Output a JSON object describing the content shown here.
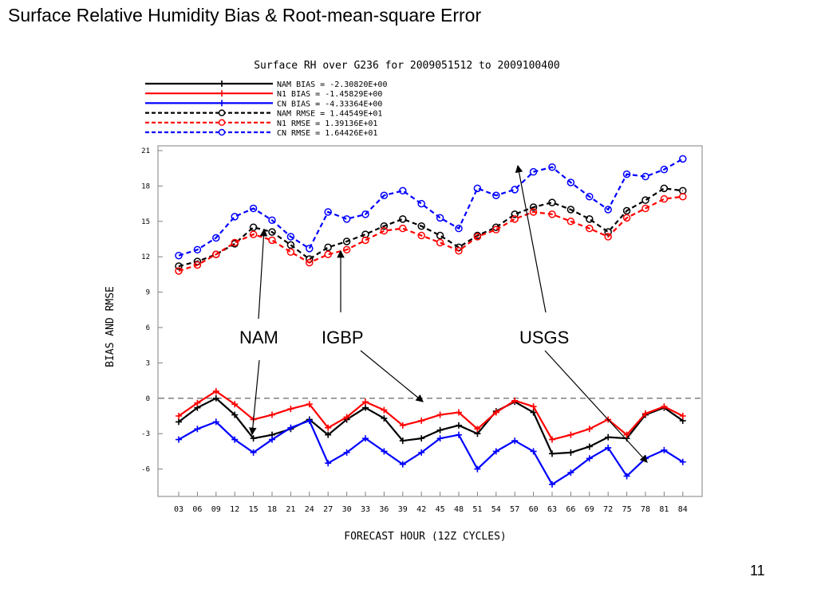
{
  "slide": {
    "title": "Surface Relative Humidity Bias & Root-mean-square Error",
    "page_number": "11"
  },
  "chart_data": {
    "type": "line",
    "title": "Surface RH over G236 for 2009051512 to 2009100400",
    "xlabel": "FORECAST HOUR (12Z CYCLES)",
    "ylabel": "BIAS AND RMSE",
    "ylim": [
      -8,
      21
    ],
    "yticks": [
      21,
      18,
      15,
      12,
      9,
      6,
      3,
      0,
      -3,
      -6
    ],
    "grid": false,
    "zero_line": {
      "y": 0,
      "style": "dashed",
      "color": "#808080"
    },
    "legend_position": "top-left",
    "categories": [
      "03",
      "06",
      "09",
      "12",
      "15",
      "18",
      "21",
      "24",
      "27",
      "30",
      "33",
      "36",
      "39",
      "42",
      "45",
      "48",
      "51",
      "54",
      "57",
      "60",
      "63",
      "66",
      "69",
      "72",
      "75",
      "78",
      "81",
      "84"
    ],
    "series": [
      {
        "name": "NAM BIAS",
        "legend_text": "NAM BIAS = -2.30820E+00",
        "color": "#000000",
        "dash": "solid",
        "marker": "plus",
        "values": [
          -2.0,
          -0.8,
          0.0,
          -1.4,
          -3.4,
          -3.1,
          -2.6,
          -1.8,
          -3.1,
          -1.8,
          -0.8,
          -1.7,
          -3.6,
          -3.4,
          -2.7,
          -2.3,
          -3.0,
          -1.1,
          -0.3,
          -1.2,
          -4.7,
          -4.6,
          -4.1,
          -3.3,
          -3.4,
          -1.4,
          -0.8,
          -1.9
        ]
      },
      {
        "name": "N1 BIAS",
        "legend_text": "N1 BIAS = -1.45829E+00",
        "color": "#ff0000",
        "dash": "solid",
        "marker": "plus",
        "values": [
          -1.5,
          -0.4,
          0.6,
          -0.5,
          -1.8,
          -1.4,
          -0.9,
          -0.5,
          -2.5,
          -1.6,
          -0.3,
          -1.0,
          -2.3,
          -1.9,
          -1.4,
          -1.2,
          -2.6,
          -1.2,
          -0.2,
          -0.7,
          -3.5,
          -3.1,
          -2.6,
          -1.8,
          -3.1,
          -1.3,
          -0.7,
          -1.5
        ]
      },
      {
        "name": "CN BIAS",
        "legend_text": "CN BIAS = -4.33364E+00",
        "color": "#0000ff",
        "dash": "solid",
        "marker": "plus",
        "values": [
          -3.5,
          -2.6,
          -2.0,
          -3.5,
          -4.6,
          -3.5,
          -2.5,
          -1.9,
          -5.5,
          -4.6,
          -3.4,
          -4.5,
          -5.6,
          -4.6,
          -3.4,
          -3.1,
          -6.0,
          -4.5,
          -3.6,
          -4.5,
          -7.3,
          -6.3,
          -5.1,
          -4.2,
          -6.6,
          -5.1,
          -4.4,
          -5.4
        ]
      },
      {
        "name": "NAM RMSE",
        "legend_text": "NAM RMSE =  1.44549E+01",
        "color": "#000000",
        "dash": "dashed",
        "marker": "circle",
        "values": [
          11.2,
          11.6,
          12.2,
          13.1,
          14.5,
          14.1,
          13.0,
          11.8,
          12.8,
          13.3,
          13.9,
          14.6,
          15.2,
          14.6,
          13.8,
          12.8,
          13.8,
          14.5,
          15.6,
          16.2,
          16.6,
          16.0,
          15.2,
          14.1,
          15.9,
          16.8,
          17.8,
          17.6
        ]
      },
      {
        "name": "N1 RMSE",
        "legend_text": "N1 RMSE =  1.39136E+01",
        "color": "#ff0000",
        "dash": "dashed",
        "marker": "circle",
        "values": [
          10.8,
          11.3,
          12.2,
          13.2,
          13.9,
          13.4,
          12.4,
          11.5,
          12.2,
          12.6,
          13.4,
          14.2,
          14.4,
          13.8,
          13.2,
          12.5,
          13.7,
          14.3,
          15.2,
          15.8,
          15.6,
          15.0,
          14.4,
          13.7,
          15.3,
          16.1,
          16.9,
          17.1
        ]
      },
      {
        "name": "CN RMSE",
        "legend_text": "CN RMSE =  1.64426E+01",
        "color": "#0000ff",
        "dash": "dashed",
        "marker": "circle",
        "values": [
          12.1,
          12.6,
          13.6,
          15.4,
          16.1,
          15.1,
          13.7,
          12.7,
          15.8,
          15.2,
          15.6,
          17.2,
          17.6,
          16.5,
          15.3,
          14.4,
          17.8,
          17.2,
          17.7,
          19.2,
          19.6,
          18.3,
          17.1,
          16.0,
          19.0,
          18.8,
          19.4,
          20.3
        ]
      }
    ],
    "annotations": [
      {
        "label": "NAM"
      },
      {
        "label": "IGBP"
      },
      {
        "label": "USGS"
      }
    ]
  }
}
